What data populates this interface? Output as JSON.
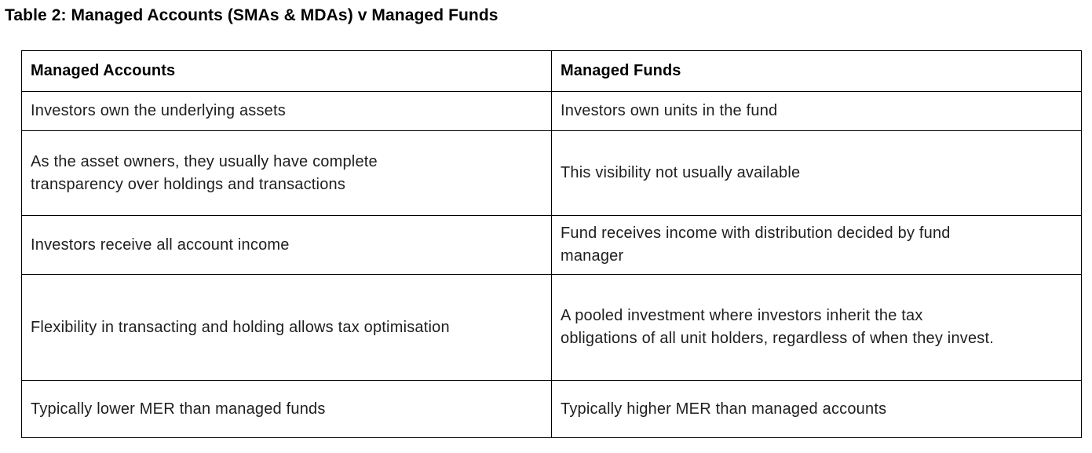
{
  "page": {
    "title": "Table 2: Managed Accounts (SMAs & MDAs) v Managed Funds"
  },
  "table": {
    "headers": [
      "Managed Accounts",
      "Managed Funds"
    ],
    "rows": [
      {
        "managed_accounts": "Investors own the underlying assets",
        "managed_funds": "Investors own units in the fund"
      },
      {
        "managed_accounts": "As the asset owners, they usually have complete transparency over holdings and transactions",
        "managed_funds": "This visibility not usually available"
      },
      {
        "managed_accounts": "Investors receive all account income",
        "managed_funds": "Fund receives income with distribution decided by fund manager"
      },
      {
        "managed_accounts": "Flexibility in transacting and holding allows tax optimisation",
        "managed_funds": "A pooled investment where investors inherit the tax obligations of all unit holders, regardless of when they invest."
      },
      {
        "managed_accounts": "Typically lower MER than managed funds",
        "managed_funds": "Typically higher MER than managed accounts"
      }
    ]
  },
  "colors": {
    "background": "#ffffff",
    "border": "#000000",
    "heading_text": "#000000",
    "body_text": "#1e1e1e"
  }
}
